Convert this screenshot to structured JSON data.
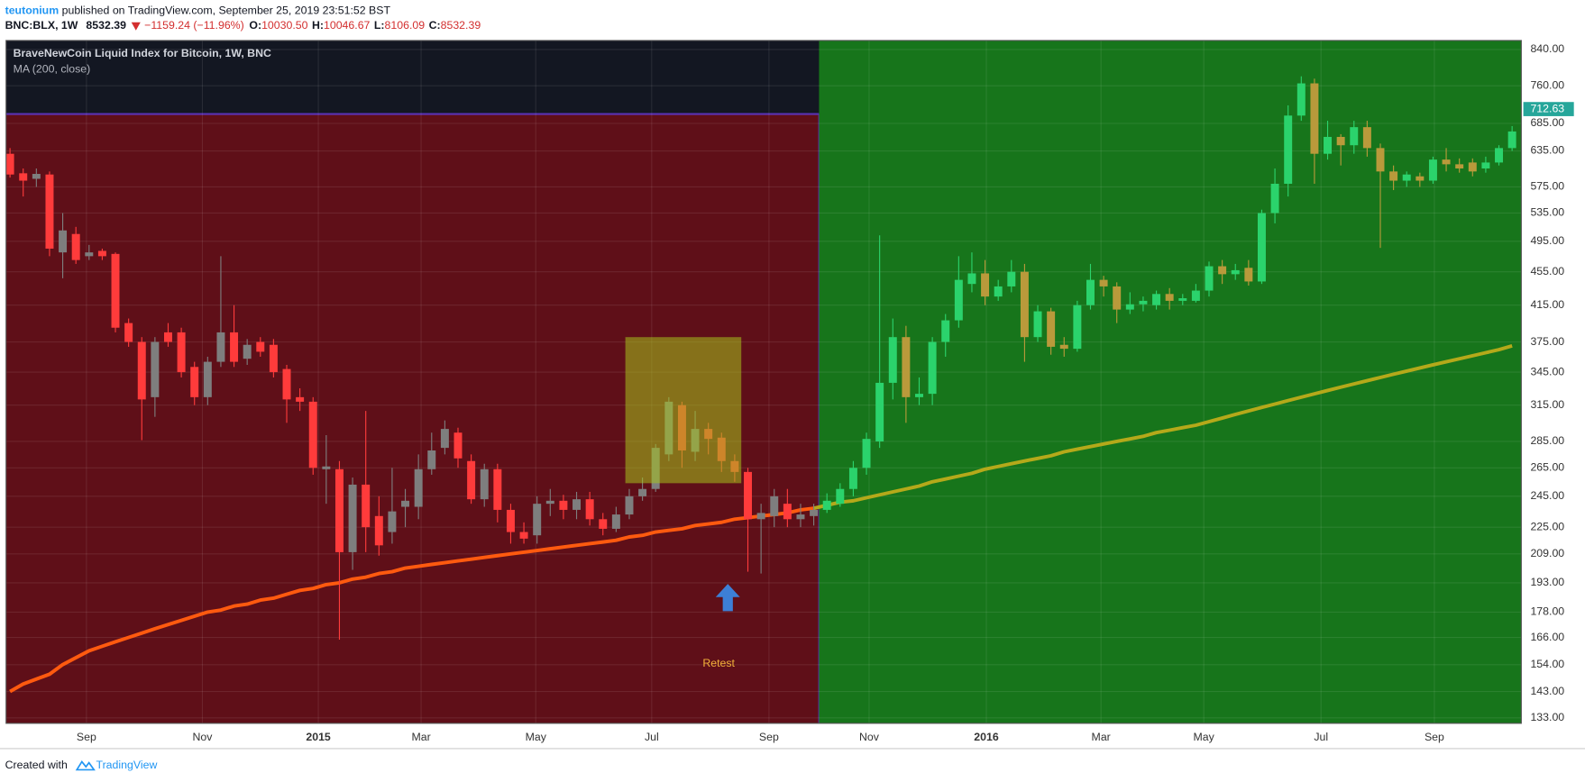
{
  "header": {
    "author": "teutonium",
    "published": "published on TradingView.com, September 25, 2019 23:51:52 BST",
    "symbol": "BNC:BLX, 1W",
    "last": "8532.39",
    "change": "−1159.24 (−11.96%)",
    "ohlc": [
      {
        "label": "O:",
        "value": "10030.50"
      },
      {
        "label": "H:",
        "value": "10046.67"
      },
      {
        "label": "L:",
        "value": "8106.09"
      },
      {
        "label": "C:",
        "value": "8532.39"
      }
    ]
  },
  "footer": {
    "created": "Created with",
    "brand": "TradingView"
  },
  "chart_data": {
    "type": "candlestick",
    "title": "BraveNewCoin Liquid Index for Bitcoin, 1W, BNC",
    "log_scale": true,
    "grid": true,
    "xlim": [
      -0.3,
      114.7
    ],
    "xticks": [
      {
        "value": 5.8,
        "label": "Sep"
      },
      {
        "value": 14.6,
        "label": "Nov"
      },
      {
        "value": 23.4,
        "label": "2015"
      },
      {
        "value": 31.2,
        "label": "Mar"
      },
      {
        "value": 39.9,
        "label": "May"
      },
      {
        "value": 48.7,
        "label": "Jul"
      },
      {
        "value": 57.6,
        "label": "Sep"
      },
      {
        "value": 65.2,
        "label": "Nov"
      },
      {
        "value": 74.1,
        "label": "2016"
      },
      {
        "value": 82.8,
        "label": "Mar"
      },
      {
        "value": 90.6,
        "label": "May"
      },
      {
        "value": 99.5,
        "label": "Jul"
      },
      {
        "value": 108.1,
        "label": "Sep"
      }
    ],
    "ylim": [
      131,
      861
    ],
    "yticks": [
      {
        "value": 840,
        "label": "840.00"
      },
      {
        "value": 760,
        "label": "760.00"
      },
      {
        "value": 685,
        "label": "685.00"
      },
      {
        "value": 635,
        "label": "635.00"
      },
      {
        "value": 575,
        "label": "575.00"
      },
      {
        "value": 535,
        "label": "535.00"
      },
      {
        "value": 495,
        "label": "495.00"
      },
      {
        "value": 455,
        "label": "455.00"
      },
      {
        "value": 415,
        "label": "415.00"
      },
      {
        "value": 375,
        "label": "375.00"
      },
      {
        "value": 345,
        "label": "345.00"
      },
      {
        "value": 315,
        "label": "315.00"
      },
      {
        "value": 285,
        "label": "285.00"
      },
      {
        "value": 265,
        "label": "265.00"
      },
      {
        "value": 245,
        "label": "245.00"
      },
      {
        "value": 225,
        "label": "225.00"
      },
      {
        "value": 209,
        "label": "209.00"
      },
      {
        "value": 193,
        "label": "193.00"
      },
      {
        "value": 178,
        "label": "178.00"
      },
      {
        "value": 166,
        "label": "166.00"
      },
      {
        "value": 154,
        "label": "154.00"
      },
      {
        "value": 143,
        "label": "143.00"
      },
      {
        "value": 133,
        "label": "133.00"
      }
    ],
    "open": [
      630,
      597,
      588,
      595,
      480,
      505,
      475,
      482,
      478,
      395,
      375,
      322,
      385,
      385,
      350,
      322,
      355,
      385,
      358,
      375,
      372,
      348,
      322,
      318,
      264,
      264,
      210,
      253,
      232,
      222,
      238,
      238,
      264,
      280,
      292,
      270,
      243,
      264,
      236,
      222,
      220,
      240,
      242,
      236,
      243,
      230,
      224,
      233,
      245,
      250,
      275,
      315,
      277,
      295,
      288,
      270,
      262,
      230,
      232,
      240,
      230,
      232,
      236,
      240,
      250,
      265,
      285,
      335,
      380,
      322,
      325,
      375,
      398,
      440,
      453,
      425,
      437,
      455,
      380,
      408,
      372,
      368,
      415,
      445,
      437,
      410,
      416,
      415,
      428,
      420,
      420,
      432,
      462,
      452,
      460,
      443,
      535,
      580,
      700,
      765,
      630,
      660,
      645,
      678,
      640,
      600,
      585,
      592,
      585,
      620,
      612,
      615,
      605,
      615,
      640
    ],
    "high": [
      640,
      605,
      605,
      600,
      535,
      515,
      490,
      485,
      480,
      400,
      380,
      380,
      395,
      390,
      355,
      360,
      475,
      415,
      378,
      380,
      378,
      352,
      330,
      322,
      290,
      270,
      258,
      310,
      245,
      265,
      250,
      275,
      292,
      302,
      296,
      275,
      268,
      268,
      240,
      228,
      245,
      250,
      246,
      248,
      248,
      234,
      238,
      250,
      258,
      283,
      322,
      318,
      310,
      300,
      292,
      275,
      265,
      240,
      250,
      250,
      240,
      240,
      247,
      254,
      270,
      292,
      503,
      400,
      392,
      340,
      380,
      405,
      475,
      480,
      470,
      445,
      470,
      465,
      415,
      412,
      380,
      420,
      465,
      450,
      442,
      430,
      425,
      432,
      435,
      428,
      440,
      468,
      470,
      465,
      470,
      540,
      605,
      720,
      780,
      775,
      690,
      665,
      690,
      690,
      648,
      610,
      600,
      598,
      625,
      640,
      622,
      622,
      625,
      645,
      680
    ],
    "low": [
      590,
      560,
      575,
      475,
      447,
      465,
      470,
      470,
      385,
      370,
      286,
      305,
      370,
      340,
      315,
      315,
      350,
      350,
      352,
      360,
      340,
      300,
      310,
      260,
      240,
      165,
      200,
      210,
      208,
      215,
      225,
      230,
      260,
      275,
      265,
      240,
      238,
      228,
      215,
      215,
      215,
      232,
      230,
      230,
      226,
      220,
      222,
      230,
      242,
      248,
      270,
      265,
      270,
      275,
      262,
      255,
      199,
      198,
      225,
      225,
      225,
      226,
      234,
      238,
      245,
      260,
      280,
      320,
      300,
      315,
      315,
      360,
      390,
      430,
      415,
      420,
      430,
      355,
      375,
      362,
      360,
      365,
      410,
      425,
      395,
      405,
      408,
      410,
      410,
      415,
      418,
      425,
      440,
      445,
      438,
      440,
      520,
      560,
      690,
      580,
      620,
      610,
      630,
      625,
      486,
      570,
      575,
      575,
      580,
      600,
      598,
      592,
      598,
      610,
      635
    ],
    "close": [
      595,
      585,
      596,
      485,
      510,
      470,
      480,
      475,
      390,
      375,
      320,
      375,
      375,
      345,
      322,
      355,
      385,
      355,
      372,
      365,
      345,
      320,
      318,
      265,
      266,
      210,
      253,
      225,
      214,
      235,
      242,
      264,
      278,
      295,
      272,
      243,
      264,
      236,
      222,
      218,
      240,
      242,
      236,
      243,
      230,
      224,
      233,
      245,
      250,
      280,
      318,
      278,
      295,
      287,
      270,
      262,
      230,
      234,
      245,
      230,
      233,
      236,
      242,
      250,
      265,
      287,
      335,
      380,
      322,
      325,
      375,
      398,
      445,
      453,
      425,
      437,
      455,
      380,
      408,
      370,
      368,
      415,
      445,
      437,
      410,
      416,
      420,
      428,
      420,
      423,
      432,
      462,
      452,
      457,
      443,
      535,
      580,
      700,
      765,
      630,
      660,
      645,
      678,
      640,
      600,
      585,
      595,
      585,
      620,
      612,
      605,
      600,
      615,
      640,
      670
    ],
    "ma": {
      "label": "MA (200, close)",
      "values": [
        143,
        146,
        148,
        150,
        154,
        157,
        160,
        162,
        164,
        166,
        168,
        170,
        172,
        174,
        176,
        178,
        179,
        181,
        182,
        184,
        185,
        187,
        189,
        190,
        192,
        193,
        195,
        196,
        198,
        199,
        201,
        202,
        203,
        204,
        205,
        206,
        207,
        208,
        209,
        210,
        211,
        212,
        213,
        214,
        215,
        216,
        217,
        219,
        220,
        222,
        223,
        224,
        226,
        227,
        228,
        230,
        231,
        232,
        233,
        234,
        236,
        237,
        239,
        241,
        242,
        244,
        246,
        248,
        250,
        252,
        255,
        257,
        259,
        261,
        264,
        266,
        268,
        270,
        272,
        274,
        277,
        279,
        281,
        283,
        285,
        287,
        289,
        292,
        294,
        296,
        298,
        301,
        304,
        307,
        310,
        313,
        316,
        319,
        322,
        325,
        328,
        331,
        334,
        337,
        340,
        343,
        346,
        349,
        352,
        355,
        358,
        361,
        364,
        367,
        371
      ]
    },
    "regions": [
      {
        "from": -0.3,
        "to": 61.4,
        "ymax": 703,
        "fill": "#5f0f18",
        "border": "#5a32b4",
        "up_color": "#7e7e7e",
        "down_color": "#ff3b3b",
        "ma_color": "#ff5a0f"
      },
      {
        "from": 61.4,
        "to": 114.7,
        "fill": "#17751b",
        "up_color": "#2bd36c",
        "down_color": "#b99a3b",
        "ma_color": "#b4a91a"
      }
    ],
    "highlight_box": {
      "x": [
        46.7,
        55.5
      ],
      "y": [
        254,
        380
      ],
      "color": "rgba(165,195,30,0.55)"
    },
    "annotation": "Retest",
    "last_value": 712.63,
    "last_color": "#26a69a"
  }
}
